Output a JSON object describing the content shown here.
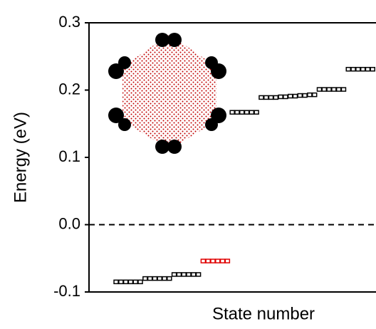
{
  "chart_data": {
    "type": "scatter",
    "x_label": "State number",
    "y_label": "Energy (eV)",
    "xlim": [
      -4.6,
      54.7
    ],
    "ylim": [
      -0.1,
      0.3
    ],
    "yticks": [
      -0.1,
      {
        "value": 0,
        "label": "0.0"
      },
      0.1,
      0.2,
      0.3
    ],
    "reference_line": 0,
    "series": [
      {
        "color": "#000000",
        "x": [
          1,
          2,
          3,
          4,
          5,
          6,
          7,
          8,
          9,
          10,
          11,
          12,
          13,
          14,
          15,
          16,
          17,
          18,
          25,
          26,
          27,
          28,
          29,
          30,
          31,
          32,
          33,
          34,
          35,
          36,
          37,
          38,
          39,
          40,
          41,
          42,
          43,
          44,
          45,
          46,
          47,
          48,
          49,
          50,
          51,
          52,
          53,
          54
        ],
        "values": [
          -0.085,
          -0.085,
          -0.085,
          -0.085,
          -0.085,
          -0.085,
          -0.08,
          -0.08,
          -0.08,
          -0.08,
          -0.08,
          -0.08,
          -0.074,
          -0.074,
          -0.074,
          -0.074,
          -0.074,
          -0.074,
          0.167,
          0.167,
          0.167,
          0.167,
          0.167,
          0.167,
          0.189,
          0.189,
          0.189,
          0.189,
          0.19,
          0.19,
          0.191,
          0.191,
          0.192,
          0.192,
          0.193,
          0.193,
          0.201,
          0.201,
          0.201,
          0.201,
          0.201,
          0.201,
          0.231,
          0.231,
          0.231,
          0.231,
          0.231,
          0.231
        ]
      },
      {
        "color": "#e00000",
        "x": [
          19,
          20,
          21,
          22,
          23,
          24
        ],
        "values": [
          -0.054,
          -0.054,
          -0.054,
          -0.054,
          -0.054,
          -0.054
        ]
      }
    ]
  }
}
